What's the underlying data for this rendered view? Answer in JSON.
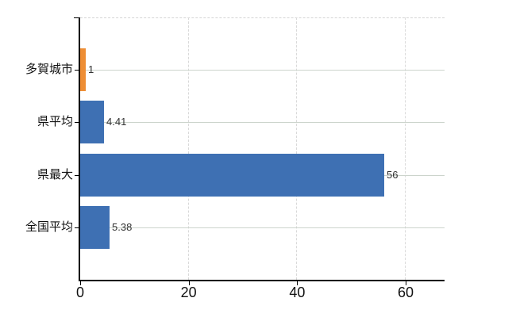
{
  "chart_data": {
    "type": "bar",
    "orientation": "horizontal",
    "title": "",
    "categories": [
      "多賀城市",
      "県平均",
      "県最大",
      "全国平均"
    ],
    "values": [
      1,
      4.41,
      56,
      5.38
    ],
    "value_labels": [
      "1",
      "4.41",
      "56",
      "5.38"
    ],
    "bar_colors": [
      "#ee8e35",
      "#3e70b3",
      "#3e70b3",
      "#3e70b3"
    ],
    "x_axis": {
      "ticks": [
        0,
        20,
        40,
        60
      ],
      "tick_labels": [
        "0",
        "20",
        "40",
        "60"
      ],
      "range": [
        0,
        67.2
      ]
    },
    "legend": "none",
    "grid": {
      "horizontal_style": "solid",
      "horizontal_color": "#ccd4cc",
      "vertical_style": "dashed",
      "vertical_color": "#d9d9d9",
      "top_border_style": "dashed",
      "top_border_color": "#d4d4d4"
    },
    "colors": {
      "highlight_bar": "#ee8e35",
      "default_bar": "#3e70b3",
      "axis": "#000000",
      "value_label_text": "#333333",
      "tick_label_text": "#111111",
      "background": "#ffffff"
    }
  }
}
